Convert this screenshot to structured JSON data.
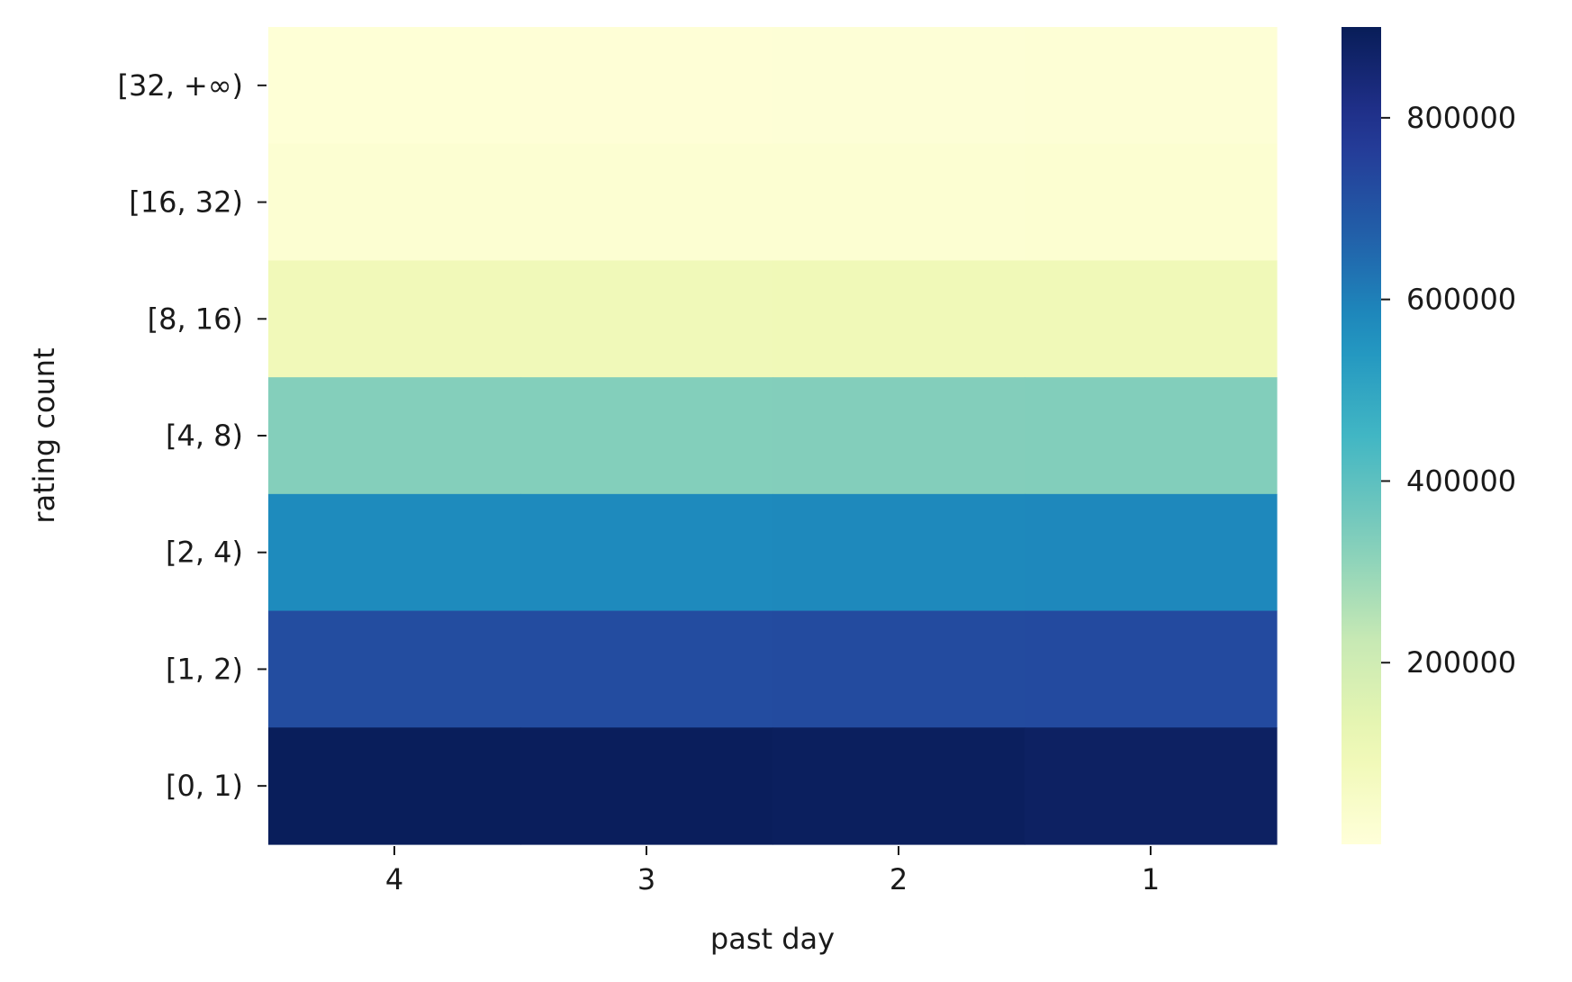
{
  "chart_data": {
    "type": "heatmap",
    "title": "",
    "xlabel": "past day",
    "ylabel": "rating count",
    "x_categories": [
      "4",
      "3",
      "2",
      "1"
    ],
    "y_categories": [
      "[32, +∞)",
      "[16, 32)",
      "[8, 16)",
      "[4, 8)",
      "[2, 4)",
      "[1, 2)",
      "[0, 1)"
    ],
    "values": [
      [
        8000,
        9000,
        9500,
        10000
      ],
      [
        20000,
        20500,
        21000,
        21500
      ],
      [
        90000,
        91000,
        92000,
        92500
      ],
      [
        330000,
        331000,
        332000,
        333000
      ],
      [
        575000,
        577000,
        580000,
        583000
      ],
      [
        720000,
        722000,
        725000,
        728000
      ],
      [
        895000,
        893000,
        888000,
        882000
      ]
    ],
    "colorbar": {
      "colormap": "YlGnBu",
      "range": [
        0,
        900000
      ],
      "ticks": [
        200000,
        400000,
        600000,
        800000
      ],
      "tick_labels": [
        "200000",
        "400000",
        "600000",
        "800000"
      ]
    }
  }
}
